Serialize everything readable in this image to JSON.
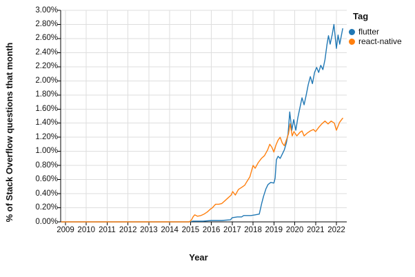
{
  "chart_data": {
    "type": "line",
    "title": "",
    "xlabel": "Year",
    "ylabel": "% of Stack Overflow questions that month",
    "legend_title": "Tag",
    "legend_position": "top-right",
    "grid": true,
    "xlim": [
      2008.8,
      2022.5
    ],
    "ylim": [
      0,
      3.0
    ],
    "x_tick_labels": [
      "2009",
      "2010",
      "2011",
      "2012",
      "2013",
      "2014",
      "2015",
      "2016",
      "2017",
      "2018",
      "2019",
      "2020",
      "2021",
      "2022"
    ],
    "y_tick_labels": [
      "0.00%",
      "0.20%",
      "0.40%",
      "0.60%",
      "0.80%",
      "1.00%",
      "1.20%",
      "1.40%",
      "1.60%",
      "1.80%",
      "2.00%",
      "2.20%",
      "2.40%",
      "2.60%",
      "2.80%",
      "3.00%"
    ],
    "colors": {
      "grid": "#dedede",
      "axis": "#000000",
      "text": "#111111"
    },
    "series": [
      {
        "name": "flutter",
        "color": "#1f77b4",
        "points": [
          [
            2008.8,
            0
          ],
          [
            2009.5,
            0
          ],
          [
            2010.5,
            0
          ],
          [
            2011.5,
            0
          ],
          [
            2012.5,
            0
          ],
          [
            2013.5,
            0
          ],
          [
            2014.5,
            0
          ],
          [
            2014.95,
            0
          ],
          [
            2015.1,
            0.01
          ],
          [
            2015.6,
            0.01
          ],
          [
            2016.0,
            0.02
          ],
          [
            2016.5,
            0.02
          ],
          [
            2016.92,
            0.03
          ],
          [
            2017.0,
            0.06
          ],
          [
            2017.25,
            0.07
          ],
          [
            2017.45,
            0.07
          ],
          [
            2017.55,
            0.09
          ],
          [
            2017.9,
            0.09
          ],
          [
            2018.1,
            0.1
          ],
          [
            2018.3,
            0.11
          ],
          [
            2018.42,
            0.27
          ],
          [
            2018.5,
            0.36
          ],
          [
            2018.62,
            0.47
          ],
          [
            2018.72,
            0.53
          ],
          [
            2018.85,
            0.56
          ],
          [
            2019.0,
            0.55
          ],
          [
            2019.06,
            0.62
          ],
          [
            2019.12,
            0.88
          ],
          [
            2019.2,
            0.93
          ],
          [
            2019.3,
            0.9
          ],
          [
            2019.4,
            0.96
          ],
          [
            2019.5,
            1.02
          ],
          [
            2019.6,
            1.12
          ],
          [
            2019.68,
            1.25
          ],
          [
            2019.76,
            1.56
          ],
          [
            2019.86,
            1.3
          ],
          [
            2019.95,
            1.45
          ],
          [
            2020.05,
            1.3
          ],
          [
            2020.15,
            1.48
          ],
          [
            2020.25,
            1.62
          ],
          [
            2020.35,
            1.76
          ],
          [
            2020.45,
            1.66
          ],
          [
            2020.55,
            1.8
          ],
          [
            2020.65,
            1.95
          ],
          [
            2020.75,
            2.06
          ],
          [
            2020.85,
            1.96
          ],
          [
            2020.95,
            2.12
          ],
          [
            2021.05,
            2.19
          ],
          [
            2021.15,
            2.12
          ],
          [
            2021.25,
            2.22
          ],
          [
            2021.35,
            2.16
          ],
          [
            2021.45,
            2.3
          ],
          [
            2021.55,
            2.52
          ],
          [
            2021.62,
            2.64
          ],
          [
            2021.7,
            2.52
          ],
          [
            2021.8,
            2.66
          ],
          [
            2021.88,
            2.8
          ],
          [
            2022.0,
            2.46
          ],
          [
            2022.08,
            2.65
          ],
          [
            2022.16,
            2.52
          ],
          [
            2022.3,
            2.74
          ]
        ]
      },
      {
        "name": "react-native",
        "color": "#ff7f0e",
        "points": [
          [
            2008.8,
            0
          ],
          [
            2009.5,
            0
          ],
          [
            2010.5,
            0
          ],
          [
            2011.5,
            0
          ],
          [
            2012.5,
            0
          ],
          [
            2013.5,
            0
          ],
          [
            2014.5,
            0
          ],
          [
            2014.95,
            0
          ],
          [
            2015.05,
            0.03
          ],
          [
            2015.12,
            0.07
          ],
          [
            2015.2,
            0.1
          ],
          [
            2015.33,
            0.08
          ],
          [
            2015.5,
            0.09
          ],
          [
            2015.65,
            0.11
          ],
          [
            2015.8,
            0.14
          ],
          [
            2015.95,
            0.18
          ],
          [
            2016.05,
            0.2
          ],
          [
            2016.2,
            0.25
          ],
          [
            2016.35,
            0.25
          ],
          [
            2016.5,
            0.26
          ],
          [
            2016.65,
            0.3
          ],
          [
            2016.8,
            0.34
          ],
          [
            2016.95,
            0.38
          ],
          [
            2017.02,
            0.43
          ],
          [
            2017.15,
            0.38
          ],
          [
            2017.3,
            0.46
          ],
          [
            2017.45,
            0.49
          ],
          [
            2017.6,
            0.52
          ],
          [
            2017.7,
            0.57
          ],
          [
            2017.85,
            0.64
          ],
          [
            2018.0,
            0.8
          ],
          [
            2018.1,
            0.76
          ],
          [
            2018.25,
            0.84
          ],
          [
            2018.4,
            0.9
          ],
          [
            2018.55,
            0.94
          ],
          [
            2018.7,
            1.02
          ],
          [
            2018.8,
            1.1
          ],
          [
            2018.9,
            1.06
          ],
          [
            2019.0,
            0.99
          ],
          [
            2019.1,
            1.09
          ],
          [
            2019.2,
            1.16
          ],
          [
            2019.3,
            1.2
          ],
          [
            2019.4,
            1.12
          ],
          [
            2019.5,
            1.08
          ],
          [
            2019.6,
            1.16
          ],
          [
            2019.7,
            1.25
          ],
          [
            2019.78,
            1.39
          ],
          [
            2019.88,
            1.22
          ],
          [
            2019.96,
            1.28
          ],
          [
            2020.1,
            1.22
          ],
          [
            2020.25,
            1.27
          ],
          [
            2020.35,
            1.29
          ],
          [
            2020.45,
            1.22
          ],
          [
            2020.6,
            1.26
          ],
          [
            2020.75,
            1.29
          ],
          [
            2020.9,
            1.31
          ],
          [
            2021.0,
            1.28
          ],
          [
            2021.15,
            1.34
          ],
          [
            2021.3,
            1.39
          ],
          [
            2021.45,
            1.43
          ],
          [
            2021.6,
            1.39
          ],
          [
            2021.75,
            1.43
          ],
          [
            2021.9,
            1.4
          ],
          [
            2022.0,
            1.3
          ],
          [
            2022.15,
            1.41
          ],
          [
            2022.3,
            1.47
          ]
        ]
      }
    ]
  }
}
